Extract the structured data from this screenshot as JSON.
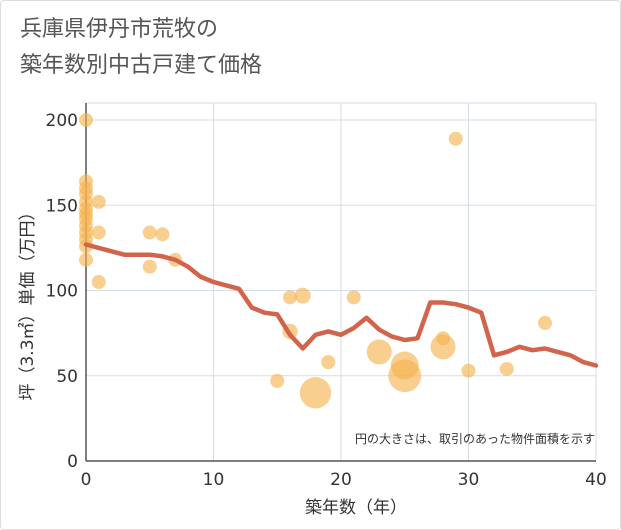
{
  "chart_data": {
    "type": "scatter+line",
    "title_lines": [
      "兵庫県伊丹市荒牧の",
      "築年数別中古戸建て価格"
    ],
    "xlabel": "築年数（年）",
    "ylabel": "坪（3.3㎡）単価（万円）",
    "xlim": [
      0,
      40
    ],
    "ylim": [
      0,
      210
    ],
    "xticks": [
      0,
      10,
      20,
      30,
      40
    ],
    "yticks": [
      0,
      50,
      100,
      150,
      200
    ],
    "grid": true,
    "note": "円の大きさは、取引のあった物件面積を示す",
    "colors": {
      "bubble": "#f5b14c",
      "line": "#d2644b",
      "grid": "#d5dde6",
      "axis": "#555555"
    },
    "bubbles": [
      {
        "x": 0,
        "y": 200,
        "size": 1
      },
      {
        "x": 0,
        "y": 164,
        "size": 1
      },
      {
        "x": 0,
        "y": 160,
        "size": 1
      },
      {
        "x": 0,
        "y": 157,
        "size": 1
      },
      {
        "x": 0,
        "y": 152,
        "size": 1
      },
      {
        "x": 0,
        "y": 148,
        "size": 1
      },
      {
        "x": 0,
        "y": 145,
        "size": 1
      },
      {
        "x": 0,
        "y": 142,
        "size": 1
      },
      {
        "x": 0,
        "y": 138,
        "size": 1
      },
      {
        "x": 0,
        "y": 134,
        "size": 1
      },
      {
        "x": 0,
        "y": 130,
        "size": 1
      },
      {
        "x": 0,
        "y": 126,
        "size": 1
      },
      {
        "x": 0,
        "y": 118,
        "size": 1
      },
      {
        "x": 1,
        "y": 152,
        "size": 1
      },
      {
        "x": 1,
        "y": 134,
        "size": 1
      },
      {
        "x": 1,
        "y": 105,
        "size": 1
      },
      {
        "x": 5,
        "y": 134,
        "size": 1
      },
      {
        "x": 5,
        "y": 114,
        "size": 1
      },
      {
        "x": 6,
        "y": 133,
        "size": 1
      },
      {
        "x": 7,
        "y": 118,
        "size": 1
      },
      {
        "x": 15,
        "y": 47,
        "size": 1
      },
      {
        "x": 16,
        "y": 96,
        "size": 1
      },
      {
        "x": 16,
        "y": 76,
        "size": 1.2
      },
      {
        "x": 17,
        "y": 97,
        "size": 1.3
      },
      {
        "x": 18,
        "y": 40,
        "size": 5
      },
      {
        "x": 19,
        "y": 58,
        "size": 1
      },
      {
        "x": 21,
        "y": 96,
        "size": 1
      },
      {
        "x": 23,
        "y": 64,
        "size": 3.2
      },
      {
        "x": 25,
        "y": 56,
        "size": 4
      },
      {
        "x": 25,
        "y": 50,
        "size": 5.5
      },
      {
        "x": 28,
        "y": 67,
        "size": 3.2
      },
      {
        "x": 28,
        "y": 72,
        "size": 1
      },
      {
        "x": 29,
        "y": 189,
        "size": 1
      },
      {
        "x": 30,
        "y": 53,
        "size": 1
      },
      {
        "x": 33,
        "y": 54,
        "size": 1
      },
      {
        "x": 36,
        "y": 81,
        "size": 1
      }
    ],
    "trend_line": [
      {
        "x": 0,
        "y": 127
      },
      {
        "x": 1,
        "y": 125
      },
      {
        "x": 2,
        "y": 123
      },
      {
        "x": 3,
        "y": 121
      },
      {
        "x": 4,
        "y": 121
      },
      {
        "x": 5,
        "y": 121
      },
      {
        "x": 6,
        "y": 120
      },
      {
        "x": 7,
        "y": 118
      },
      {
        "x": 8,
        "y": 114
      },
      {
        "x": 9,
        "y": 108
      },
      {
        "x": 10,
        "y": 105
      },
      {
        "x": 11,
        "y": 103
      },
      {
        "x": 12,
        "y": 101
      },
      {
        "x": 13,
        "y": 90
      },
      {
        "x": 14,
        "y": 87
      },
      {
        "x": 15,
        "y": 86
      },
      {
        "x": 16,
        "y": 74
      },
      {
        "x": 17,
        "y": 66
      },
      {
        "x": 18,
        "y": 74
      },
      {
        "x": 19,
        "y": 76
      },
      {
        "x": 20,
        "y": 74
      },
      {
        "x": 21,
        "y": 78
      },
      {
        "x": 22,
        "y": 84
      },
      {
        "x": 23,
        "y": 77
      },
      {
        "x": 24,
        "y": 73
      },
      {
        "x": 25,
        "y": 71
      },
      {
        "x": 26,
        "y": 72
      },
      {
        "x": 27,
        "y": 93
      },
      {
        "x": 28,
        "y": 93
      },
      {
        "x": 29,
        "y": 92
      },
      {
        "x": 30,
        "y": 90
      },
      {
        "x": 31,
        "y": 87
      },
      {
        "x": 32,
        "y": 62
      },
      {
        "x": 33,
        "y": 64
      },
      {
        "x": 34,
        "y": 67
      },
      {
        "x": 35,
        "y": 65
      },
      {
        "x": 36,
        "y": 66
      },
      {
        "x": 37,
        "y": 64
      },
      {
        "x": 38,
        "y": 62
      },
      {
        "x": 39,
        "y": 58
      },
      {
        "x": 40,
        "y": 56
      }
    ]
  }
}
